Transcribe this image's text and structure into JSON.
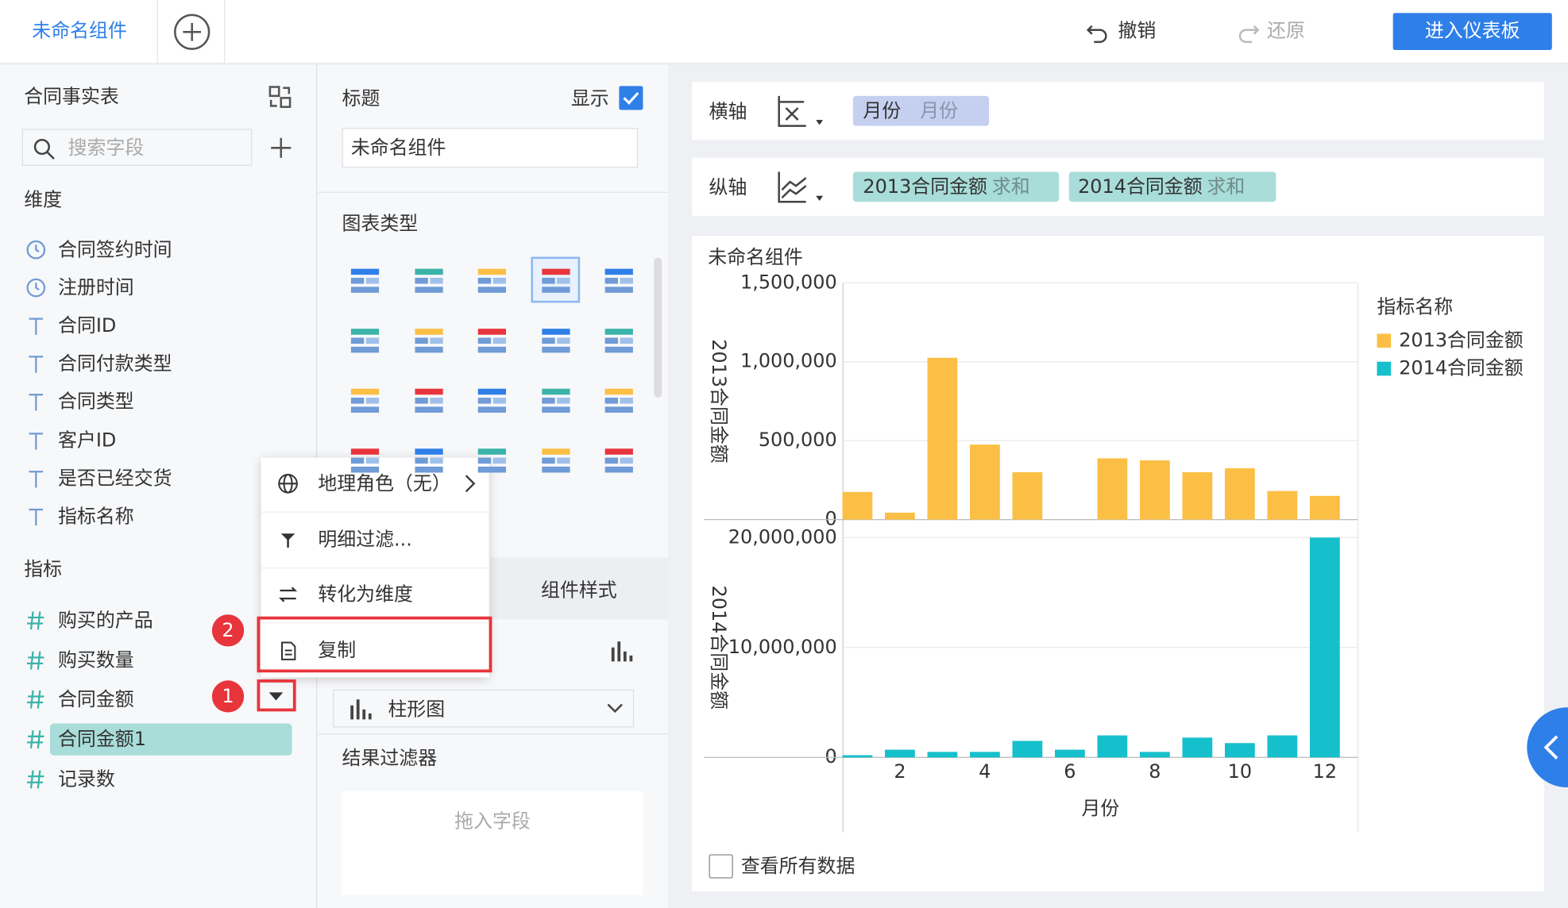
{
  "toolbar": {
    "tab": "未命名组件",
    "undo": "撤销",
    "redo": "还原",
    "enter_dashboard": "进入仪表板"
  },
  "fields_panel": {
    "table": "合同事实表",
    "search_placeholder": "搜索字段",
    "dimensions_title": "维度",
    "dimensions": [
      "合同签约时间",
      "注册时间",
      "合同ID",
      "合同付款类型",
      "合同类型",
      "客户ID",
      "是否已经交货",
      "指标名称"
    ],
    "measures_title": "指标",
    "measures": [
      "购买的产品",
      "购买数量",
      "合同金额",
      "合同金额1",
      "记录数"
    ]
  },
  "settings_panel": {
    "title_label": "标题",
    "show_label": "显示",
    "title_value": "未命名组件",
    "chart_type_label": "图表类型",
    "style_tab": "组件样式",
    "chart_type_value": "柱形图",
    "result_filter": "结果过滤器",
    "drop_field": "拖入字段"
  },
  "context_menu": {
    "items": [
      "地理角色（无）",
      "明细过滤...",
      "转化为维度",
      "复制"
    ],
    "steps": [
      "1",
      "2"
    ]
  },
  "axes": {
    "x_label": "横轴",
    "x_fields": [
      {
        "name": "月份",
        "sub": "月份"
      }
    ],
    "y_label": "纵轴",
    "y_fields": [
      {
        "name": "2013合同金额",
        "agg": "求和"
      },
      {
        "name": "2014合同金额",
        "agg": "求和"
      }
    ]
  },
  "view_all": "查看所有数据",
  "chart_data": [
    {
      "type": "bar",
      "title": "未命名组件",
      "legend_title": "指标名称",
      "y_label": "2013合同金额",
      "x": [
        1,
        2,
        3,
        4,
        5,
        6,
        7,
        8,
        9,
        10,
        11,
        12
      ],
      "xlim": [
        0.66,
        12.78
      ],
      "ylim": [
        0,
        1500000
      ],
      "yticks": [
        0,
        {
          "value": 500000,
          "label": "500,000"
        },
        {
          "value": 1000000,
          "label": "1,000,000"
        },
        {
          "value": 1500000,
          "label": "1,500,000"
        }
      ],
      "grid": true,
      "series": [
        {
          "name": "2013合同金额",
          "color": "#fbbf45",
          "values": [
            175000,
            44000,
            1025000,
            475000,
            300000,
            0,
            388000,
            375000,
            300000,
            325000,
            181000,
            150000
          ]
        }
      ]
    },
    {
      "type": "bar",
      "y_label": "2014合同金额",
      "x_label": "月份",
      "x": [
        1,
        2,
        3,
        4,
        5,
        6,
        7,
        8,
        9,
        10,
        11,
        12
      ],
      "xlim": [
        0.66,
        12.78
      ],
      "xticks": [
        2,
        4,
        6,
        8,
        10,
        12
      ],
      "ylim": [
        0,
        20000000
      ],
      "yticks": [
        0,
        {
          "value": 10000000,
          "label": "10,000,000"
        },
        {
          "value": 20000000,
          "label": "20,000,000"
        }
      ],
      "grid": true,
      "series": [
        {
          "name": "2014合同金额",
          "color": "#16bfcc",
          "values": [
            200000,
            700000,
            500000,
            500000,
            1500000,
            700000,
            2000000,
            500000,
            1800000,
            1300000,
            2000000,
            20000000
          ]
        }
      ]
    }
  ]
}
